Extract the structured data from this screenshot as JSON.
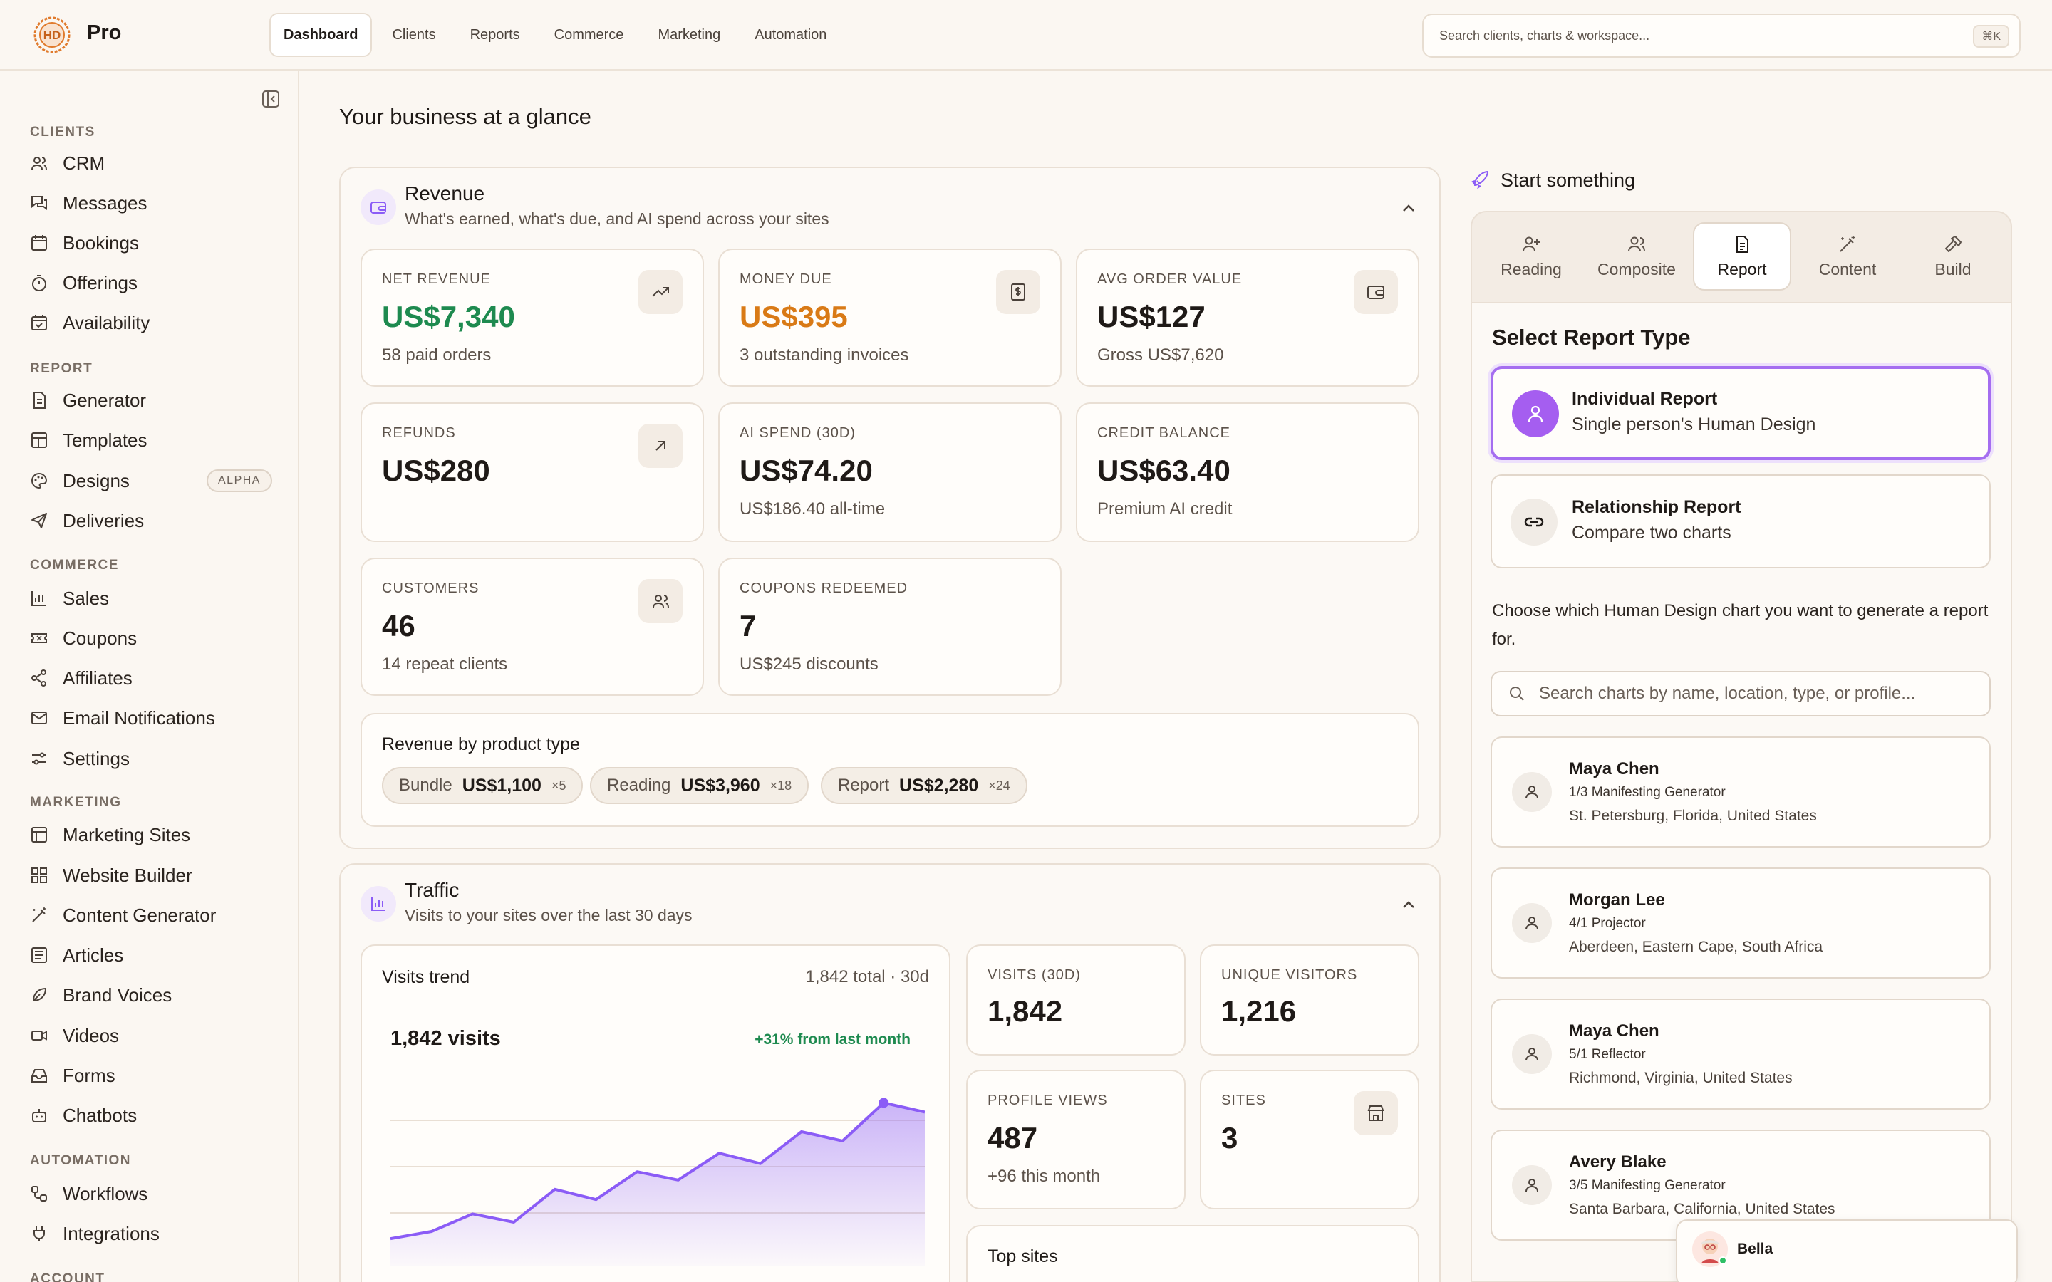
{
  "app": {
    "brand": "Pro"
  },
  "nav": {
    "tabs": [
      "Dashboard",
      "Clients",
      "Reports",
      "Commerce",
      "Marketing",
      "Automation"
    ]
  },
  "search": {
    "placeholder": "Search clients, charts & workspace...",
    "shortcut": "⌘K"
  },
  "sidebar": {
    "sections": [
      {
        "label": "CLIENTS",
        "items": [
          "CRM",
          "Messages",
          "Bookings",
          "Offerings",
          "Availability"
        ]
      },
      {
        "label": "REPORT",
        "items": [
          "Generator",
          "Templates",
          "Designs",
          "Deliveries"
        ]
      },
      {
        "label": "COMMERCE",
        "items": [
          "Sales",
          "Coupons",
          "Affiliates",
          "Email Notifications",
          "Settings"
        ]
      },
      {
        "label": "MARKETING",
        "items": [
          "Marketing Sites",
          "Website Builder",
          "Content Generator",
          "Articles",
          "Brand Voices",
          "Videos",
          "Forms",
          "Chatbots"
        ]
      },
      {
        "label": "AUTOMATION",
        "items": [
          "Workflows",
          "Integrations"
        ]
      },
      {
        "label": "ACCOUNT",
        "items": []
      }
    ],
    "alpha_badge": "ALPHA"
  },
  "page": {
    "title": "Your business at a glance"
  },
  "revenue": {
    "title": "Revenue",
    "subtitle": "What's earned, what's due, and AI spend across your sites",
    "stats": [
      {
        "label": "NET REVENUE",
        "value": "US$7,340",
        "sub": "58 paid orders",
        "icon": "trending-up-icon",
        "color": "#1e8a4f"
      },
      {
        "label": "MONEY DUE",
        "value": "US$395",
        "sub": "3 outstanding invoices",
        "icon": "invoice-icon",
        "color": "#d97a16"
      },
      {
        "label": "AVG ORDER VALUE",
        "value": "US$127",
        "sub": "Gross US$7,620",
        "icon": "wallet-icon",
        "color": "#1f1a17"
      },
      {
        "label": "REFUNDS",
        "value": "US$280",
        "sub": "",
        "icon": "arrow-up-right-icon",
        "color": "#1f1a17"
      },
      {
        "label": "AI SPEND (30D)",
        "value": "US$74.20",
        "sub": "US$186.40 all-time",
        "icon": "",
        "color": "#1f1a17"
      },
      {
        "label": "CREDIT BALANCE",
        "value": "US$63.40",
        "sub": "Premium AI credit",
        "icon": "",
        "color": "#1f1a17"
      },
      {
        "label": "CUSTOMERS",
        "value": "46",
        "sub": "14 repeat clients",
        "icon": "users-icon",
        "color": "#1f1a17"
      },
      {
        "label": "COUPONS REDEEMED",
        "value": "7",
        "sub": "US$245 discounts",
        "icon": "",
        "color": "#1f1a17"
      }
    ],
    "by_type": {
      "title": "Revenue by product type",
      "items": [
        {
          "name": "Bundle",
          "amount": "US$1,100",
          "count": "×5"
        },
        {
          "name": "Reading",
          "amount": "US$3,960",
          "count": "×18"
        },
        {
          "name": "Report",
          "amount": "US$2,280",
          "count": "×24"
        }
      ]
    }
  },
  "traffic": {
    "title": "Traffic",
    "subtitle": "Visits to your sites over the last 30 days",
    "trend": {
      "title": "Visits trend",
      "summary": "1,842 total · 30d",
      "headline": "1,842 visits",
      "change": "+31% from last month"
    },
    "stats": [
      {
        "label": "VISITS (30D)",
        "value": "1,842",
        "sub": ""
      },
      {
        "label": "UNIQUE VISITORS",
        "value": "1,216",
        "sub": ""
      },
      {
        "label": "PROFILE VIEWS",
        "value": "487",
        "sub": "+96 this month"
      },
      {
        "label": "SITES",
        "value": "3",
        "sub": ""
      }
    ],
    "top_sites_title": "Top sites"
  },
  "chart_data": {
    "type": "area",
    "title": "",
    "xlabel": "",
    "ylabel": "",
    "grid": true,
    "highlight_index": 12,
    "values": [
      20,
      27,
      44,
      36,
      68,
      58,
      85,
      77,
      103,
      93,
      124,
      115,
      152,
      143
    ],
    "ylim": [
      0,
      180
    ],
    "color": "#8b5cf6"
  },
  "start": {
    "title": "Start something",
    "tabs": [
      {
        "label": "Reading",
        "icon": "user-plus-icon"
      },
      {
        "label": "Composite",
        "icon": "users-icon"
      },
      {
        "label": "Report",
        "icon": "file-icon"
      },
      {
        "label": "Content",
        "icon": "wand-icon"
      },
      {
        "label": "Build",
        "icon": "hammer-icon"
      }
    ],
    "active_tab": "Report",
    "section_title": "Select Report Type",
    "options": [
      {
        "title": "Individual Report",
        "sub": "Single person's Human Design"
      },
      {
        "title": "Relationship Report",
        "sub": "Compare two charts"
      }
    ],
    "help": "Choose which Human Design chart you want to generate a report for.",
    "chart_search_placeholder": "Search charts by name, location, type, or profile...",
    "people": [
      {
        "name": "Maya Chen",
        "type": "1/3 Manifesting Generator",
        "location": "St. Petersburg, Florida, United States"
      },
      {
        "name": "Morgan Lee",
        "type": "4/1 Projector",
        "location": "Aberdeen, Eastern Cape, South Africa"
      },
      {
        "name": "Maya Chen",
        "type": "5/1 Reflector",
        "location": "Richmond, Virginia, United States"
      },
      {
        "name": "Avery Blake",
        "type": "3/5 Manifesting Generator",
        "location": "Santa Barbara, California, United States"
      }
    ]
  },
  "chat": {
    "name": "Bella"
  },
  "colors": {
    "accent": "#8b5cf6",
    "positive": "#1e8a4f",
    "warning": "#d97a16"
  }
}
